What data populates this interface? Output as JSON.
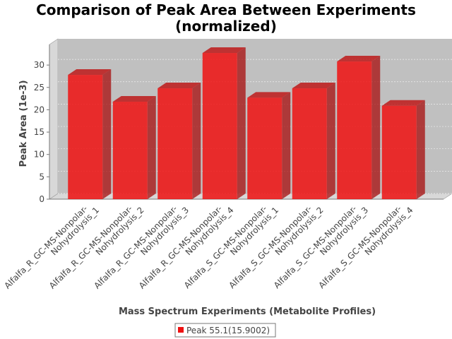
{
  "chart_data": {
    "type": "bar3d",
    "title": "Comparison of Peak Area Between Experiments (normalized)",
    "x_label": "Mass Spectrum Experiments (Metabolite Profiles)",
    "y_label": "Peak Area (1e-3)",
    "categories": [
      "Alfalfa_R_GC-MS-Nonpolar-Nohydrolysis_1",
      "Alfalfa_R_GC-MS-Nonpolar-Nohydrolysis_2",
      "Alfalfa_R_GC-MS-Nonpolar-Nohydrolysis_3",
      "Alfalfa_R_GC-MS-Nonpolar-Nohydrolysis_4",
      "Alfalfa_S_GC-MS-Nonpolar-Nohydrolysis_1",
      "Alfalfa_S_GC-MS-Nonpolar-Nohydrolysis_2",
      "Alfalfa_S_GC-MS-Nonpolar-Nohydrolysis_3",
      "Alfalfa_S_GC-MS-Nonpolar-Nohydrolysis_4"
    ],
    "series": [
      {
        "name": "Peak 55.1(15.9002)",
        "color": "#ee1111",
        "values": [
          27.8,
          21.8,
          24.8,
          32.7,
          22.7,
          24.8,
          30.8,
          20.9
        ]
      }
    ],
    "ylim": [
      0,
      34.6
    ],
    "yticks": [
      0,
      5,
      10,
      15,
      20,
      25,
      30
    ],
    "grid": true,
    "legend": "bottom"
  }
}
